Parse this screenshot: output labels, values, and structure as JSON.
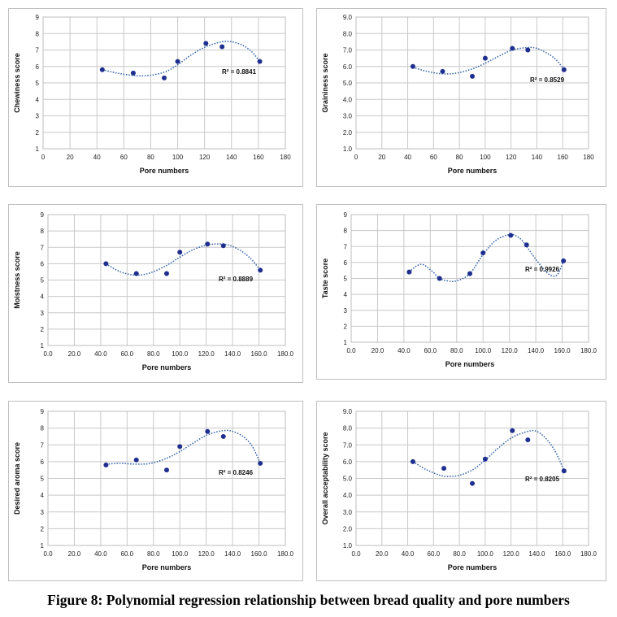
{
  "figure": {
    "caption": "Figure 8: Polynomial regression relationship between bread quality and pore numbers"
  },
  "colors": {
    "marker": "#1f2f8f",
    "trend": "#2e5fa8",
    "grid": "#c8c8c8",
    "axis_text": "#222222"
  },
  "chart_data": [
    {
      "type": "scatter",
      "ylabel": "Chewiness score",
      "xlabel": "Pore numbers",
      "r2": "R² = 0.8841",
      "xlim": [
        0,
        180
      ],
      "ylim": [
        1,
        9
      ],
      "xticks": [
        "0",
        "20",
        "40",
        "60",
        "80",
        "100",
        "120",
        "140",
        "160",
        "180"
      ],
      "yticks": [
        "1",
        "2",
        "3",
        "4",
        "5",
        "6",
        "7",
        "8",
        "9"
      ],
      "points": [
        [
          44,
          5.8
        ],
        [
          67,
          5.6
        ],
        [
          90,
          5.3
        ],
        [
          100,
          6.3
        ],
        [
          121,
          7.4
        ],
        [
          133,
          7.2
        ],
        [
          161,
          6.3
        ]
      ],
      "trend": [
        [
          44,
          5.8
        ],
        [
          55,
          5.6
        ],
        [
          67,
          5.45
        ],
        [
          78,
          5.45
        ],
        [
          90,
          5.65
        ],
        [
          100,
          6.1
        ],
        [
          110,
          6.7
        ],
        [
          121,
          7.2
        ],
        [
          133,
          7.5
        ],
        [
          140,
          7.5
        ],
        [
          148,
          7.3
        ],
        [
          155,
          6.9
        ],
        [
          161,
          6.3
        ]
      ]
    },
    {
      "type": "scatter",
      "ylabel": "Graininess score",
      "xlabel": "Pore numbers",
      "r2": "R² = 0.8529",
      "xlim": [
        0,
        180
      ],
      "ylim": [
        1,
        9
      ],
      "xticks": [
        "0",
        "20",
        "40",
        "60",
        "80",
        "100",
        "120",
        "140",
        "160",
        "180"
      ],
      "yticks": [
        "1.0",
        "2.0",
        "3.0",
        "4.0",
        "5.0",
        "6.0",
        "7.0",
        "8.0",
        "9.0"
      ],
      "points": [
        [
          44,
          6.0
        ],
        [
          67,
          5.7
        ],
        [
          90,
          5.4
        ],
        [
          100,
          6.5
        ],
        [
          121,
          7.1
        ],
        [
          133,
          7.0
        ],
        [
          161,
          5.8
        ]
      ],
      "trend": [
        [
          44,
          5.95
        ],
        [
          55,
          5.7
        ],
        [
          67,
          5.55
        ],
        [
          78,
          5.6
        ],
        [
          90,
          5.85
        ],
        [
          100,
          6.2
        ],
        [
          110,
          6.6
        ],
        [
          121,
          7.0
        ],
        [
          133,
          7.15
        ],
        [
          140,
          7.1
        ],
        [
          148,
          6.8
        ],
        [
          155,
          6.4
        ],
        [
          161,
          5.8
        ]
      ]
    },
    {
      "type": "scatter",
      "ylabel": "Moistness score",
      "xlabel": "Pore numbers",
      "r2": "R² = 0.8889",
      "xlim": [
        0,
        180
      ],
      "ylim": [
        1,
        9
      ],
      "xticks": [
        "0.0",
        "20.0",
        "40.0",
        "60.0",
        "80.0",
        "100.0",
        "120.0",
        "140.0",
        "160.0",
        "180.0"
      ],
      "yticks": [
        "1",
        "2",
        "3",
        "4",
        "5",
        "6",
        "7",
        "8",
        "9"
      ],
      "points": [
        [
          44,
          6.0
        ],
        [
          67,
          5.4
        ],
        [
          90,
          5.4
        ],
        [
          100,
          6.7
        ],
        [
          121,
          7.2
        ],
        [
          133,
          7.1
        ],
        [
          161,
          5.6
        ]
      ],
      "trend": [
        [
          44,
          6.0
        ],
        [
          55,
          5.5
        ],
        [
          67,
          5.3
        ],
        [
          78,
          5.45
        ],
        [
          90,
          5.9
        ],
        [
          100,
          6.4
        ],
        [
          110,
          6.85
        ],
        [
          121,
          7.15
        ],
        [
          133,
          7.2
        ],
        [
          140,
          7.05
        ],
        [
          148,
          6.7
        ],
        [
          155,
          6.2
        ],
        [
          161,
          5.6
        ]
      ]
    },
    {
      "type": "scatter",
      "ylabel": "Taste score",
      "xlabel": "Pore numbers",
      "r2": "R² = 0.9926",
      "xlim": [
        0,
        180
      ],
      "ylim": [
        1,
        9
      ],
      "xticks": [
        "0.0",
        "20.0",
        "40.0",
        "60.0",
        "80.0",
        "100.0",
        "120.0",
        "140.0",
        "160.0",
        "180.0"
      ],
      "yticks": [
        "1",
        "2",
        "3",
        "4",
        "5",
        "6",
        "7",
        "8",
        "9"
      ],
      "points": [
        [
          44,
          5.4
        ],
        [
          67,
          5.0
        ],
        [
          90,
          5.3
        ],
        [
          100,
          6.6
        ],
        [
          121,
          7.7
        ],
        [
          133,
          7.1
        ],
        [
          161,
          6.1
        ]
      ],
      "trend": [
        [
          44,
          5.4
        ],
        [
          50,
          5.8
        ],
        [
          55,
          5.85
        ],
        [
          62,
          5.4
        ],
        [
          67,
          5.0
        ],
        [
          73,
          4.85
        ],
        [
          80,
          4.85
        ],
        [
          90,
          5.3
        ],
        [
          100,
          6.5
        ],
        [
          110,
          7.4
        ],
        [
          121,
          7.75
        ],
        [
          128,
          7.5
        ],
        [
          133,
          7.0
        ],
        [
          140,
          6.2
        ],
        [
          148,
          5.4
        ],
        [
          153,
          5.15
        ],
        [
          157,
          5.3
        ],
        [
          161,
          6.1
        ]
      ]
    },
    {
      "type": "scatter",
      "ylabel": "Desired aroma score",
      "xlabel": "Pore numbers",
      "r2": "R² = 0.8246",
      "xlim": [
        0,
        180
      ],
      "ylim": [
        1,
        9
      ],
      "xticks": [
        "0.0",
        "20.0",
        "40.0",
        "60.0",
        "80.0",
        "100.0",
        "120.0",
        "140.0",
        "160.0",
        "180.0"
      ],
      "yticks": [
        "1",
        "2",
        "3",
        "4",
        "5",
        "6",
        "7",
        "8",
        "9"
      ],
      "points": [
        [
          44,
          5.8
        ],
        [
          67,
          6.1
        ],
        [
          90,
          5.5
        ],
        [
          100,
          6.9
        ],
        [
          121,
          7.8
        ],
        [
          133,
          7.5
        ],
        [
          161,
          5.9
        ]
      ],
      "trend": [
        [
          44,
          5.85
        ],
        [
          55,
          5.9
        ],
        [
          67,
          5.85
        ],
        [
          78,
          5.9
        ],
        [
          90,
          6.2
        ],
        [
          100,
          6.6
        ],
        [
          110,
          7.1
        ],
        [
          121,
          7.6
        ],
        [
          133,
          7.85
        ],
        [
          140,
          7.8
        ],
        [
          148,
          7.5
        ],
        [
          155,
          6.9
        ],
        [
          161,
          5.9
        ]
      ]
    },
    {
      "type": "scatter",
      "ylabel": "Overall acceptability score",
      "xlabel": "Pore numbers",
      "r2": "R² = 0.8205",
      "xlim": [
        0,
        180
      ],
      "ylim": [
        1,
        9
      ],
      "xticks": [
        "0.0",
        "20.0",
        "40.0",
        "60.0",
        "80.0",
        "100.0",
        "120.0",
        "140.0",
        "160.0",
        "180.0"
      ],
      "yticks": [
        "1.0",
        "2.0",
        "3.0",
        "4.0",
        "5.0",
        "6.0",
        "7.0",
        "8.0",
        "9.0"
      ],
      "points": [
        [
          44,
          6.0
        ],
        [
          68,
          5.6
        ],
        [
          90,
          4.7
        ],
        [
          100,
          6.15
        ],
        [
          121,
          7.85
        ],
        [
          133,
          7.3
        ],
        [
          161,
          5.45
        ]
      ],
      "trend": [
        [
          44,
          6.0
        ],
        [
          55,
          5.5
        ],
        [
          67,
          5.15
        ],
        [
          78,
          5.15
        ],
        [
          90,
          5.5
        ],
        [
          100,
          6.1
        ],
        [
          110,
          6.8
        ],
        [
          121,
          7.45
        ],
        [
          133,
          7.8
        ],
        [
          140,
          7.8
        ],
        [
          148,
          7.3
        ],
        [
          155,
          6.5
        ],
        [
          161,
          5.45
        ]
      ]
    }
  ]
}
